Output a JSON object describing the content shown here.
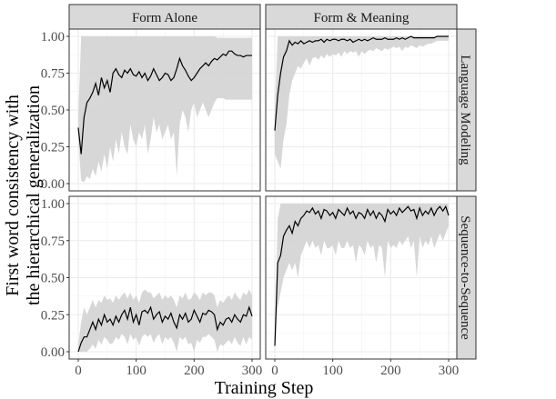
{
  "chart_data": {
    "type": "line",
    "xlabel": "Training Step",
    "ylabel": [
      "First word consistency with",
      "the hierarchical generalization"
    ],
    "xlim": [
      0,
      300
    ],
    "ylim": [
      0,
      1
    ],
    "x_ticks": [
      "0",
      "100",
      "200",
      "300"
    ],
    "y_ticks": [
      "0.00",
      "0.25",
      "0.50",
      "0.75",
      "1.00"
    ],
    "grid": true,
    "line_color": "#000000",
    "ribbon_color": "#d3d3d3",
    "columns": [
      "Form Alone",
      "Form & Meaning"
    ],
    "rows": [
      "Language Modeling",
      "Sequence-to-Sequence"
    ],
    "x": [
      0,
      5,
      10,
      15,
      20,
      25,
      30,
      35,
      40,
      45,
      50,
      55,
      60,
      65,
      70,
      75,
      80,
      85,
      90,
      95,
      100,
      105,
      110,
      115,
      120,
      125,
      130,
      135,
      140,
      145,
      150,
      155,
      160,
      165,
      170,
      175,
      180,
      185,
      190,
      195,
      200,
      205,
      210,
      215,
      220,
      225,
      230,
      235,
      240,
      245,
      250,
      255,
      260,
      265,
      270,
      275,
      280,
      285,
      290,
      295,
      300
    ],
    "panels": [
      {
        "column": "Form Alone",
        "row": "Language Modeling",
        "mean": [
          0.38,
          0.2,
          0.45,
          0.55,
          0.58,
          0.62,
          0.68,
          0.6,
          0.72,
          0.65,
          0.7,
          0.62,
          0.75,
          0.78,
          0.74,
          0.72,
          0.77,
          0.75,
          0.78,
          0.74,
          0.73,
          0.76,
          0.72,
          0.75,
          0.7,
          0.73,
          0.78,
          0.74,
          0.7,
          0.72,
          0.75,
          0.74,
          0.7,
          0.72,
          0.78,
          0.85,
          0.8,
          0.77,
          0.73,
          0.7,
          0.72,
          0.75,
          0.78,
          0.8,
          0.82,
          0.8,
          0.83,
          0.85,
          0.84,
          0.86,
          0.88,
          0.87,
          0.9,
          0.9,
          0.88,
          0.87,
          0.87,
          0.86,
          0.87,
          0.87,
          0.87
        ],
        "lower": [
          0.3,
          0.02,
          0.01,
          0.05,
          0.03,
          0.1,
          0.05,
          0.15,
          0.08,
          0.2,
          0.1,
          0.25,
          0.15,
          0.3,
          0.2,
          0.35,
          0.25,
          0.2,
          0.4,
          0.3,
          0.25,
          0.35,
          0.3,
          0.4,
          0.2,
          0.3,
          0.45,
          0.35,
          0.4,
          0.3,
          0.35,
          0.4,
          0.3,
          0.35,
          0.05,
          0.4,
          0.5,
          0.45,
          0.35,
          0.5,
          0.55,
          0.45,
          0.5,
          0.55,
          0.5,
          0.45,
          0.5,
          0.55,
          0.58,
          0.58,
          0.58,
          0.57,
          0.57,
          0.57,
          0.57,
          0.57,
          0.57,
          0.57,
          0.57,
          0.57,
          0.57
        ],
        "upper": [
          0.45,
          1,
          1,
          1,
          1,
          1,
          1,
          1,
          1,
          1,
          1,
          1,
          1,
          1,
          1,
          1,
          1,
          1,
          1,
          1,
          1,
          1,
          1,
          1,
          1,
          1,
          1,
          1,
          1,
          1,
          1,
          1,
          1,
          1,
          1,
          1,
          1,
          1,
          1,
          1,
          1,
          1,
          1,
          1,
          1,
          1,
          1,
          1,
          0.99,
          0.99,
          0.99,
          0.99,
          0.99,
          0.99,
          0.99,
          0.99,
          0.99,
          0.99,
          0.99,
          0.99,
          0.99
        ]
      },
      {
        "column": "Form & Meaning",
        "row": "Language Modeling",
        "mean": [
          0.36,
          0.6,
          0.75,
          0.86,
          0.9,
          0.97,
          0.94,
          0.96,
          0.95,
          0.97,
          0.95,
          0.96,
          0.97,
          0.96,
          0.97,
          0.97,
          0.98,
          0.96,
          0.98,
          0.97,
          0.98,
          0.98,
          0.97,
          0.98,
          0.98,
          0.97,
          0.98,
          0.96,
          0.97,
          0.98,
          0.97,
          0.98,
          0.97,
          0.98,
          0.99,
          0.98,
          0.98,
          0.98,
          0.99,
          0.98,
          0.98,
          0.98,
          0.99,
          0.98,
          0.99,
          0.98,
          0.99,
          1.0,
          0.99,
          0.99,
          0.99,
          0.99,
          0.99,
          0.99,
          0.99,
          0.99,
          1.0,
          1.0,
          1.0,
          1.0,
          1.0
        ],
        "lower": [
          0.2,
          0.15,
          0.1,
          0.3,
          0.4,
          0.6,
          0.7,
          0.75,
          0.8,
          0.78,
          0.82,
          0.85,
          0.8,
          0.85,
          0.86,
          0.84,
          0.87,
          0.85,
          0.88,
          0.86,
          0.88,
          0.87,
          0.89,
          0.86,
          0.9,
          0.88,
          0.9,
          0.89,
          0.9,
          0.86,
          0.9,
          0.88,
          0.9,
          0.91,
          0.9,
          0.92,
          0.91,
          0.9,
          0.92,
          0.91,
          0.92,
          0.93,
          0.92,
          0.93,
          0.9,
          0.93,
          0.92,
          0.94,
          0.93,
          0.92,
          0.94,
          0.93,
          0.94,
          0.95,
          0.95,
          0.96,
          0.97,
          0.97,
          0.97,
          0.97,
          0.97
        ],
        "upper": [
          0.5,
          1,
          1,
          1,
          1,
          1,
          1,
          1,
          1,
          1,
          1,
          1,
          1,
          1,
          1,
          1,
          1,
          1,
          1,
          1,
          1,
          1,
          1,
          1,
          1,
          1,
          1,
          1,
          1,
          1,
          1,
          1,
          1,
          1,
          1,
          1,
          1,
          1,
          1,
          1,
          1,
          1,
          1,
          1,
          1,
          1,
          1,
          1,
          1,
          1,
          1,
          1,
          1,
          1,
          1,
          1,
          1,
          1,
          1,
          1,
          1
        ]
      },
      {
        "column": "Form Alone",
        "row": "Sequence-to-Sequence",
        "mean": [
          0.0,
          0.06,
          0.1,
          0.1,
          0.15,
          0.2,
          0.15,
          0.22,
          0.18,
          0.25,
          0.2,
          0.22,
          0.18,
          0.24,
          0.2,
          0.25,
          0.28,
          0.22,
          0.3,
          0.2,
          0.25,
          0.18,
          0.27,
          0.28,
          0.26,
          0.3,
          0.22,
          0.25,
          0.27,
          0.2,
          0.24,
          0.22,
          0.26,
          0.2,
          0.16,
          0.25,
          0.22,
          0.26,
          0.2,
          0.22,
          0.28,
          0.24,
          0.2,
          0.26,
          0.25,
          0.28,
          0.27,
          0.25,
          0.15,
          0.2,
          0.18,
          0.22,
          0.23,
          0.2,
          0.25,
          0.22,
          0.2,
          0.25,
          0.24,
          0.3,
          0.24
        ],
        "lower": [
          0.0,
          0.0,
          0.0,
          0.0,
          0.02,
          0.05,
          0.02,
          0.08,
          0.05,
          0.1,
          0.08,
          0.05,
          0.06,
          0.1,
          0.08,
          0.12,
          0.1,
          0.05,
          0.12,
          0.08,
          0.1,
          0.04,
          0.1,
          0.12,
          0.1,
          0.12,
          0.06,
          0.1,
          0.12,
          0.05,
          0.1,
          0.08,
          0.1,
          0.06,
          0.0,
          0.1,
          0.08,
          0.1,
          0.05,
          0.06,
          0.0,
          0.08,
          0.06,
          0.1,
          0.1,
          0.12,
          0.1,
          0.08,
          0.0,
          0.05,
          0.04,
          0.06,
          0.08,
          0.05,
          0.1,
          0.06,
          0.04,
          0.1,
          0.05,
          0.1,
          0.08
        ],
        "upper": [
          0.05,
          0.2,
          0.3,
          0.25,
          0.3,
          0.35,
          0.3,
          0.35,
          0.33,
          0.38,
          0.35,
          0.36,
          0.33,
          0.38,
          0.35,
          0.38,
          0.4,
          0.36,
          0.4,
          0.35,
          0.38,
          0.33,
          0.4,
          0.42,
          0.4,
          0.4,
          0.36,
          0.38,
          0.4,
          0.35,
          0.38,
          0.36,
          0.38,
          0.35,
          0.3,
          0.38,
          0.36,
          0.4,
          0.35,
          0.36,
          0.4,
          0.38,
          0.35,
          0.4,
          0.38,
          0.4,
          0.4,
          0.38,
          0.3,
          0.35,
          0.33,
          0.36,
          0.38,
          0.35,
          0.4,
          0.37,
          0.35,
          0.4,
          0.38,
          0.42,
          0.38
        ]
      },
      {
        "column": "Form & Meaning",
        "row": "Sequence-to-Sequence",
        "mean": [
          0.04,
          0.6,
          0.65,
          0.78,
          0.82,
          0.85,
          0.8,
          0.88,
          0.85,
          0.9,
          0.92,
          0.95,
          0.94,
          0.97,
          0.93,
          0.95,
          0.9,
          0.96,
          0.95,
          0.92,
          0.94,
          0.9,
          0.96,
          0.94,
          0.92,
          0.97,
          0.93,
          0.95,
          0.9,
          0.94,
          0.93,
          0.9,
          0.96,
          0.92,
          0.95,
          0.9,
          0.94,
          0.92,
          0.88,
          0.96,
          0.93,
          0.95,
          0.92,
          0.97,
          0.94,
          0.96,
          0.98,
          0.95,
          0.96,
          0.9,
          0.97,
          0.92,
          0.95,
          0.93,
          0.97,
          0.92,
          0.96,
          0.98,
          0.95,
          0.98,
          0.92
        ],
        "lower": [
          0.0,
          0.3,
          0.4,
          0.5,
          0.55,
          0.6,
          0.55,
          0.6,
          0.5,
          0.65,
          0.7,
          0.75,
          0.7,
          0.75,
          0.7,
          0.72,
          0.65,
          0.75,
          0.7,
          0.7,
          0.72,
          0.65,
          0.75,
          0.7,
          0.7,
          0.75,
          0.7,
          0.72,
          0.6,
          0.72,
          0.7,
          0.65,
          0.75,
          0.7,
          0.72,
          0.6,
          0.72,
          0.7,
          0.5,
          0.75,
          0.7,
          0.72,
          0.7,
          0.75,
          0.72,
          0.75,
          0.78,
          0.7,
          0.75,
          0.5,
          0.78,
          0.7,
          0.75,
          0.72,
          0.78,
          0.7,
          0.75,
          0.8,
          0.75,
          0.8,
          0.85
        ],
        "upper": [
          0.1,
          0.9,
          1,
          1,
          1,
          1,
          1,
          1,
          1,
          1,
          1,
          1,
          1,
          1,
          1,
          1,
          1,
          1,
          1,
          1,
          1,
          1,
          1,
          1,
          1,
          1,
          1,
          1,
          1,
          1,
          1,
          1,
          1,
          1,
          1,
          1,
          1,
          1,
          1,
          1,
          1,
          1,
          1,
          1,
          1,
          1,
          1,
          1,
          1,
          1,
          1,
          1,
          1,
          1,
          1,
          1,
          1,
          1,
          1,
          1,
          1
        ]
      }
    ]
  }
}
